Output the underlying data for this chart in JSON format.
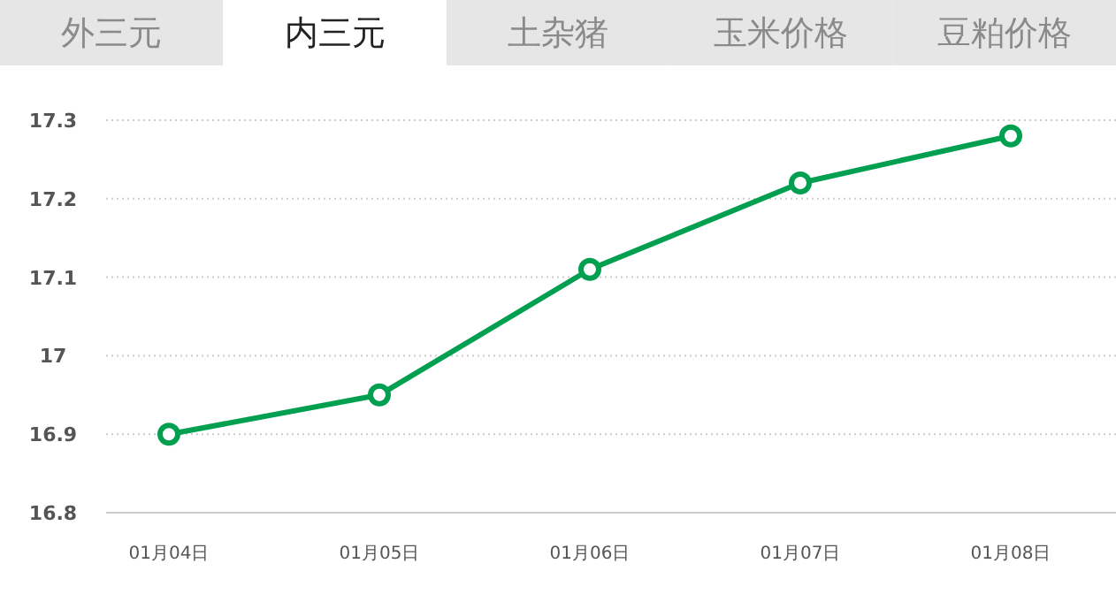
{
  "chart_data": {
    "type": "line",
    "title": "内三元",
    "annotations": [
      "外三元",
      "土杂猪",
      "玉米价格",
      "豆粕价格"
    ],
    "categories": [
      "01月04日",
      "01月05日",
      "01月06日",
      "01月07日",
      "01月08日"
    ],
    "series": [
      {
        "color": "#00a050",
        "values": [
          16.9,
          16.95,
          17.11,
          17.22,
          17.28
        ]
      }
    ],
    "ylim": [
      16.8,
      17.3
    ],
    "yticks": [
      16.8,
      16.9,
      {
        "value": 17,
        "label": "17"
      },
      17.1,
      17.2,
      17.3
    ],
    "grid": "y",
    "marker": "circle",
    "line_style": "solid"
  }
}
